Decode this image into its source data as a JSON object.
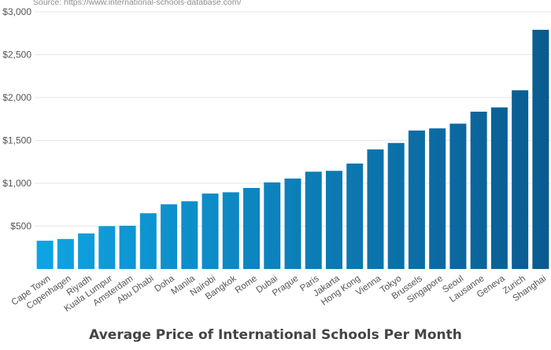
{
  "source": "Source: https://www.international-schools-database.com/",
  "chart_data": {
    "type": "bar",
    "title": "Average Price of International Schools Per Month",
    "xlabel": "",
    "ylabel": "",
    "ylim": [
      0,
      3000
    ],
    "yticks": [
      500,
      1000,
      1500,
      2000,
      2500,
      3000
    ],
    "ytick_labels": [
      "$500",
      "$1,000",
      "$1,500",
      "$2,000",
      "$2,500",
      "$3,000"
    ],
    "grid": true,
    "legend": "none",
    "colors": {
      "start": "#0ea5e3",
      "end": "#0b5a8f"
    },
    "categories": [
      "Cape Town",
      "Copenhagen",
      "Riyadh",
      "Kuala Lumpur",
      "Amsterdam",
      "Abu Dhabi",
      "Doha",
      "Manila",
      "Nairobi",
      "Bangkok",
      "Rome",
      "Dubai",
      "Prague",
      "Paris",
      "Jakarta",
      "Hong Kong",
      "Vienna",
      "Tokyo",
      "Brussels",
      "Singapore",
      "Seoul",
      "Lausanne",
      "Geneva",
      "Zurich",
      "Shanghai"
    ],
    "values": [
      330,
      350,
      415,
      500,
      505,
      650,
      755,
      790,
      880,
      895,
      945,
      1010,
      1055,
      1135,
      1145,
      1230,
      1395,
      1470,
      1615,
      1640,
      1695,
      1835,
      1885,
      2085,
      2790
    ]
  }
}
